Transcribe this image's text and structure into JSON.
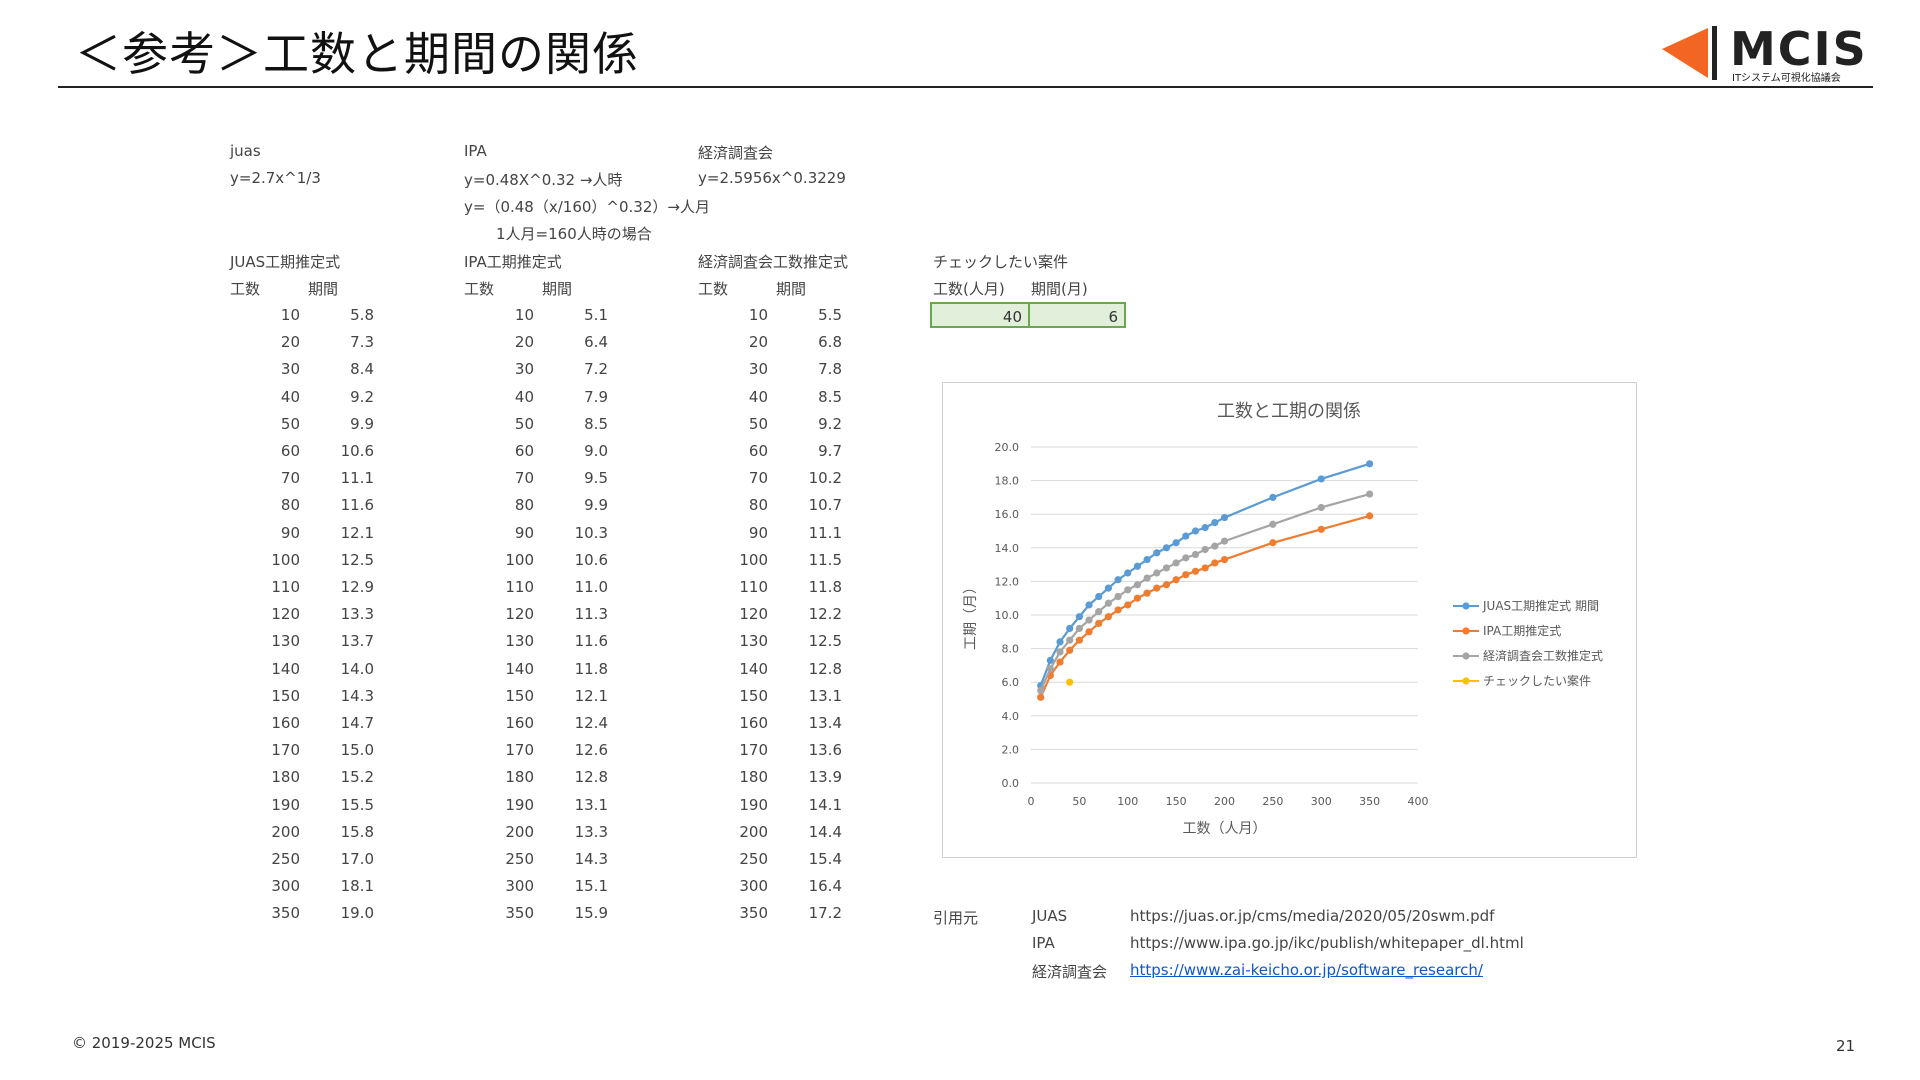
{
  "page": {
    "title": "＜参考＞工数と期間の関係",
    "logo_text": "MCIS",
    "logo_sub": "ITシステム可視化協議会",
    "copyright": "© 2019-2025 MCIS",
    "page_number": "21"
  },
  "formulas": {
    "juas": {
      "name": "juas",
      "line1": "y=2.7x^1/3"
    },
    "ipa": {
      "name": "IPA",
      "line1": "y=0.48X^0.32 →人時",
      "line2": "y=（0.48（x/160）^0.32）→人月",
      "line3": "1人月=160人時の場合"
    },
    "keizai": {
      "name": "経済調査会",
      "line1": "y=2.5956x^0.3229"
    }
  },
  "tables": {
    "juas": {
      "title": "JUAS工期推定式",
      "col1": "工数",
      "col2": "期間"
    },
    "ipa": {
      "title": "IPA工期推定式",
      "col1": "工数",
      "col2": "期間"
    },
    "keizai": {
      "title": "経済調査会工数推定式",
      "col1": "工数",
      "col2": "期間"
    }
  },
  "x_values": [
    "10",
    "20",
    "30",
    "40",
    "50",
    "60",
    "70",
    "80",
    "90",
    "100",
    "110",
    "120",
    "130",
    "140",
    "150",
    "160",
    "170",
    "180",
    "190",
    "200",
    "250",
    "300",
    "350"
  ],
  "juas_values": [
    "5.8",
    "7.3",
    "8.4",
    "9.2",
    "9.9",
    "10.6",
    "11.1",
    "11.6",
    "12.1",
    "12.5",
    "12.9",
    "13.3",
    "13.7",
    "14.0",
    "14.3",
    "14.7",
    "15.0",
    "15.2",
    "15.5",
    "15.8",
    "17.0",
    "18.1",
    "19.0"
  ],
  "ipa_values": [
    "5.1",
    "6.4",
    "7.2",
    "7.9",
    "8.5",
    "9.0",
    "9.5",
    "9.9",
    "10.3",
    "10.6",
    "11.0",
    "11.3",
    "11.6",
    "11.8",
    "12.1",
    "12.4",
    "12.6",
    "12.8",
    "13.1",
    "13.3",
    "14.3",
    "15.1",
    "15.9"
  ],
  "keizai_values": [
    "5.5",
    "6.8",
    "7.8",
    "8.5",
    "9.2",
    "9.7",
    "10.2",
    "10.7",
    "11.1",
    "11.5",
    "11.8",
    "12.2",
    "12.5",
    "12.8",
    "13.1",
    "13.4",
    "13.6",
    "13.9",
    "14.1",
    "14.4",
    "15.4",
    "16.4",
    "17.2"
  ],
  "check": {
    "title": "チェックしたい案件",
    "col1": "工数(人月)",
    "col2": "期間(月)",
    "value1": "40",
    "value2": "6"
  },
  "sources": {
    "label": "引用元",
    "items": [
      {
        "name": "JUAS",
        "url": "https://juas.or.jp/cms/media/2020/05/20swm.pdf"
      },
      {
        "name": "IPA",
        "url": "https://www.ipa.go.jp/ikc/publish/whitepaper_dl.html"
      },
      {
        "name": "経済調査会",
        "url": "https://www.zai-keicho.or.jp/software_research/"
      }
    ]
  },
  "chart_data": {
    "type": "line",
    "title": "工数と工期の関係",
    "xlabel": "工数（人月）",
    "ylabel": "工期（月）",
    "xlim": [
      0,
      400
    ],
    "ylim": [
      0,
      20
    ],
    "xticks": [
      0,
      50,
      100,
      150,
      200,
      250,
      300,
      350,
      400
    ],
    "yticks": [
      0,
      2,
      4,
      6,
      8,
      10,
      12,
      14,
      16,
      18,
      20
    ],
    "ytick_labels": [
      "0.0",
      "2.0",
      "4.0",
      "6.0",
      "8.0",
      "10.0",
      "12.0",
      "14.0",
      "16.0",
      "18.0",
      "20.0"
    ],
    "grid": true,
    "legend_position": "right",
    "x": [
      10,
      20,
      30,
      40,
      50,
      60,
      70,
      80,
      90,
      100,
      110,
      120,
      130,
      140,
      150,
      160,
      170,
      180,
      190,
      200,
      250,
      300,
      350
    ],
    "series": [
      {
        "name": "JUAS工期推定式 期間",
        "color": "#5b9bd5",
        "values": [
          5.8,
          7.3,
          8.4,
          9.2,
          9.9,
          10.6,
          11.1,
          11.6,
          12.1,
          12.5,
          12.9,
          13.3,
          13.7,
          14.0,
          14.3,
          14.7,
          15.0,
          15.2,
          15.5,
          15.8,
          17.0,
          18.1,
          19.0
        ]
      },
      {
        "name": "IPA工期推定式",
        "color": "#ed7d31",
        "values": [
          5.1,
          6.4,
          7.2,
          7.9,
          8.5,
          9.0,
          9.5,
          9.9,
          10.3,
          10.6,
          11.0,
          11.3,
          11.6,
          11.8,
          12.1,
          12.4,
          12.6,
          12.8,
          13.1,
          13.3,
          14.3,
          15.1,
          15.9
        ]
      },
      {
        "name": "経済調査会工数推定式",
        "color": "#a5a5a5",
        "values": [
          5.5,
          6.8,
          7.8,
          8.5,
          9.2,
          9.7,
          10.2,
          10.7,
          11.1,
          11.5,
          11.8,
          12.2,
          12.5,
          12.8,
          13.1,
          13.4,
          13.6,
          13.9,
          14.1,
          14.4,
          15.4,
          16.4,
          17.2
        ]
      },
      {
        "name": "チェックしたい案件",
        "color": "#ffc000",
        "points": [
          [
            40,
            6
          ]
        ]
      }
    ]
  }
}
